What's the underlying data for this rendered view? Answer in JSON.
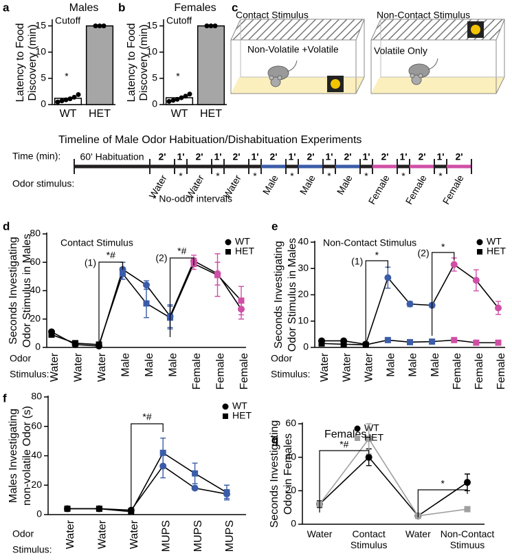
{
  "chart_data": [
    {
      "panel": "a",
      "type": "bar",
      "title": "Males",
      "y_label": [
        "Latency to Food",
        "Discovery (min)"
      ],
      "categories": [
        "WT",
        "HET"
      ],
      "values": [
        1.2,
        15
      ],
      "colors": [
        "#ffffff",
        "#a6a6a6"
      ],
      "points": [
        [
          0.5,
          0.7,
          0.9,
          1.1,
          1.4,
          1.9
        ],
        [
          15,
          15,
          15
        ]
      ],
      "ylim": [
        0,
        16
      ],
      "yticks": [
        0,
        5,
        10,
        15
      ],
      "annotations": [
        {
          "text": "Cutoff",
          "color": "#000000"
        },
        {
          "text": "*",
          "color": "#000000"
        }
      ]
    },
    {
      "panel": "b",
      "type": "bar",
      "title": "Females",
      "y_label": [
        "Latency to Food",
        "Discovery (min)"
      ],
      "categories": [
        "WT",
        "HET"
      ],
      "values": [
        1.3,
        15
      ],
      "colors": [
        "#ffffff",
        "#a6a6a6"
      ],
      "points": [
        [
          0.6,
          0.8,
          1.0,
          1.3,
          1.6,
          2.0
        ],
        [
          15,
          15,
          15
        ]
      ],
      "ylim": [
        0,
        16
      ],
      "yticks": [
        0,
        5,
        10,
        15
      ],
      "annotations": [
        {
          "text": "Cutoff",
          "color": "#000000"
        },
        {
          "text": "*",
          "color": "#000000"
        }
      ]
    },
    {
      "panel": "d",
      "type": "line",
      "y_label": [
        "Seconds Investigating",
        "Odor Stimulus in Males"
      ],
      "x_label": [
        "Odor",
        "Stimulus:"
      ],
      "categories": [
        "Water",
        "Water",
        "Water",
        "Male",
        "Male",
        "Male",
        "Female",
        "Female",
        "Female"
      ],
      "category_colors": [
        "#000000",
        "#000000",
        "#000000",
        "#3b5ca8",
        "#3b5ca8",
        "#3b5ca8",
        "#d04fa6",
        "#d04fa6",
        "#d04fa6"
      ],
      "color_by_category": true,
      "legend": "upper right",
      "series": [
        {
          "name": "WT",
          "marker": "circle",
          "color": "#000000",
          "values": [
            11,
            2,
            1,
            55,
            44,
            22,
            61,
            52,
            27
          ],
          "errors": [
            1,
            1,
            1,
            5,
            3,
            8,
            4,
            8,
            7
          ]
        },
        {
          "name": "HET",
          "marker": "square",
          "color": "#000000",
          "values": [
            9,
            3,
            2,
            52,
            31,
            21,
            59,
            51,
            33
          ],
          "errors": [
            1,
            1,
            1,
            4,
            10,
            8,
            4,
            15,
            10
          ]
        }
      ],
      "ylim": [
        0,
        80
      ],
      "yticks": [
        0,
        20,
        40,
        60,
        80
      ],
      "annotations": [
        {
          "text": "Contact Stimulus",
          "color": "#000000"
        },
        {
          "text": "(1)",
          "color": "#000000"
        },
        {
          "text": "*#",
          "color": "#3b5ca8"
        },
        {
          "text": "(2)",
          "color": "#000000"
        },
        {
          "text": "*#",
          "color": "#d04fa6"
        }
      ]
    },
    {
      "panel": "e",
      "type": "line",
      "y_label": [
        "Seconds Investigating",
        "Odor Stimulus in Males"
      ],
      "x_label": [
        "Odor",
        "Stimulus:"
      ],
      "categories": [
        "Water",
        "Water",
        "Water",
        "Male",
        "Male",
        "Male",
        "Female",
        "Female",
        "Female"
      ],
      "category_colors": [
        "#000000",
        "#000000",
        "#000000",
        "#3b5ca8",
        "#3b5ca8",
        "#3b5ca8",
        "#d04fa6",
        "#d04fa6",
        "#d04fa6"
      ],
      "color_by_category": true,
      "legend": "upper right",
      "series": [
        {
          "name": "WT",
          "marker": "circle",
          "color": "#000000",
          "values": [
            2.5,
            2.5,
            1.2,
            26.5,
            16.5,
            16,
            31.5,
            25.5,
            15
          ],
          "errors": [
            0.5,
            0.5,
            0.3,
            4,
            1,
            0.8,
            2.5,
            4,
            2.5
          ]
        },
        {
          "name": "HET",
          "marker": "square",
          "color": "#000000",
          "values": [
            1.5,
            1.2,
            1,
            2.8,
            2,
            2.2,
            2.8,
            1.8,
            1.8
          ],
          "errors": [
            0.3,
            0.2,
            0.2,
            0.3,
            0.3,
            0.3,
            0.3,
            0.2,
            0.2
          ]
        }
      ],
      "ylim": [
        0,
        40
      ],
      "yticks": [
        0,
        10,
        20,
        30,
        40
      ],
      "annotations": [
        {
          "text": "Non-Contact Stimulus",
          "color": "#000000"
        },
        {
          "text": "(1)",
          "color": "#000000"
        },
        {
          "text": "*",
          "color": "#3b5ca8"
        },
        {
          "text": "(2)",
          "color": "#000000"
        },
        {
          "text": "*",
          "color": "#d04fa6"
        }
      ]
    },
    {
      "panel": "f",
      "type": "line",
      "y_label": [
        "Males Investigating",
        "non-volatile Odor (s)"
      ],
      "x_label": [
        "Odor",
        "Stimulus:"
      ],
      "categories": [
        "Water",
        "Water",
        "Water",
        "MUPS",
        "MUPS",
        "MUPS"
      ],
      "category_colors": [
        "#000000",
        "#000000",
        "#000000",
        "#3b5ca8",
        "#3b5ca8",
        "#3b5ca8"
      ],
      "color_by_category": true,
      "legend": "upper right",
      "series": [
        {
          "name": "WT",
          "marker": "circle",
          "color": "#000000",
          "values": [
            4,
            4,
            3,
            33,
            18,
            14
          ],
          "errors": [
            1,
            1,
            1,
            8,
            1,
            3
          ]
        },
        {
          "name": "HET",
          "marker": "square",
          "color": "#000000",
          "values": [
            4,
            4,
            2,
            42,
            28,
            15
          ],
          "errors": [
            1,
            1,
            1,
            10,
            7,
            5
          ]
        }
      ],
      "ylim": [
        0,
        80
      ],
      "yticks": [
        0,
        20,
        40,
        60,
        80
      ],
      "annotations": [
        {
          "text": "*#",
          "color": "#3b5ca8"
        }
      ]
    },
    {
      "panel": "g",
      "type": "line",
      "title": "Females",
      "y_label": [
        "Seconds Investigating",
        "Odor in Females"
      ],
      "categories": [
        "Water",
        "Contact Stimulus",
        "Water",
        "Non-Contact Stimuus"
      ],
      "color_by_category": false,
      "legend": "upper right",
      "series": [
        {
          "name": "WT",
          "marker": "circle",
          "color": "#000000",
          "values": [
            12,
            40,
            5,
            25
          ],
          "errors": [
            2,
            5,
            0.5,
            5
          ]
        },
        {
          "name": "HET",
          "marker": "square",
          "color": "#a0a0a0",
          "values": [
            12,
            51,
            5,
            9
          ],
          "errors": [
            1,
            9,
            0.5,
            0.5
          ]
        }
      ],
      "ylim": [
        0,
        60
      ],
      "yticks": [
        0,
        20,
        40,
        60
      ],
      "annotations": [
        {
          "text": "*#",
          "color": "#000000"
        },
        {
          "text": "*",
          "color": "#000000"
        }
      ]
    }
  ],
  "panel_c": {
    "label": "c",
    "left_title": "Contact Stimulus",
    "left_text": "Non-Volatile +Volatile",
    "right_title": "Non-Contact Stimulus",
    "right_text": "Volatile Only"
  },
  "timeline": {
    "title": "Timeline of Male Odor Habituation/Dishabituation Experiments",
    "time_label": "Time (min):",
    "habituation": "60' Habituation",
    "durations": [
      "2'",
      "1'",
      "2'",
      "1'",
      "2'",
      "1'",
      "2'",
      "1'",
      "2'",
      "1'",
      "2'",
      "1'",
      "2'",
      "1'",
      "2'",
      "1'",
      "2'"
    ],
    "odor_label": "Odor stimulus:",
    "stimuli": [
      {
        "text": "Water",
        "color": "#231f20"
      },
      {
        "text": "Water",
        "color": "#231f20"
      },
      {
        "text": "Water",
        "color": "#231f20"
      },
      {
        "text": "Male",
        "color": "#3b5ca8"
      },
      {
        "text": "Male",
        "color": "#3b5ca8"
      },
      {
        "text": "Male",
        "color": "#3b5ca8"
      },
      {
        "text": "Female",
        "color": "#d04fa6"
      },
      {
        "text": "Female",
        "color": "#d04fa6"
      },
      {
        "text": "Female",
        "color": "#d04fa6"
      }
    ],
    "interval_mark": "*",
    "legend": "* No-odor intervals"
  }
}
